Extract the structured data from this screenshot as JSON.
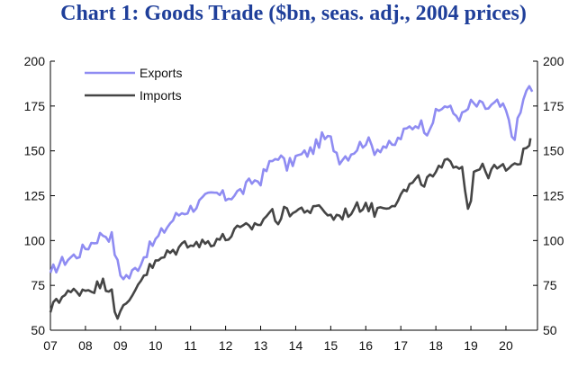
{
  "chart_data": {
    "type": "line",
    "title": "Chart 1: Goods Trade ($bn, seas. adj., 2004 prices)",
    "xlabel": "",
    "ylabel": "",
    "ylim": [
      50,
      200
    ],
    "y_ticks": [
      "50",
      "75",
      "100",
      "125",
      "150",
      "175",
      "200"
    ],
    "y2_ticks": [
      "50",
      "75",
      "100",
      "125",
      "150",
      "175",
      "200"
    ],
    "x_tick_labels": [
      "07",
      "08",
      "09",
      "10",
      "11",
      "12",
      "13",
      "14",
      "15",
      "16",
      "17",
      "18",
      "19",
      "20"
    ],
    "x_range": [
      2007.0,
      2020.9
    ],
    "grid": false,
    "legend_position": "top-left",
    "series": [
      {
        "name": "Exports",
        "color": "#8f8cf2",
        "points": [
          [
            2007.0,
            82
          ],
          [
            2007.25,
            87
          ],
          [
            2007.5,
            90
          ],
          [
            2007.75,
            92
          ],
          [
            2008.0,
            96
          ],
          [
            2008.25,
            100
          ],
          [
            2008.5,
            104
          ],
          [
            2008.75,
            102
          ],
          [
            2008.9,
            88
          ],
          [
            2009.0,
            81
          ],
          [
            2009.25,
            80
          ],
          [
            2009.5,
            86
          ],
          [
            2009.75,
            94
          ],
          [
            2010.0,
            100
          ],
          [
            2010.25,
            106
          ],
          [
            2010.5,
            112
          ],
          [
            2010.75,
            116
          ],
          [
            2011.0,
            118
          ],
          [
            2011.25,
            121
          ],
          [
            2011.5,
            124
          ],
          [
            2011.75,
            126
          ],
          [
            2012.0,
            124
          ],
          [
            2012.25,
            126
          ],
          [
            2012.5,
            128
          ],
          [
            2012.75,
            133
          ],
          [
            2013.0,
            134
          ],
          [
            2013.25,
            142
          ],
          [
            2013.5,
            148
          ],
          [
            2013.75,
            141
          ],
          [
            2014.0,
            146
          ],
          [
            2014.25,
            148
          ],
          [
            2014.5,
            151
          ],
          [
            2014.75,
            157
          ],
          [
            2015.0,
            156
          ],
          [
            2015.25,
            146
          ],
          [
            2015.5,
            148
          ],
          [
            2015.75,
            152
          ],
          [
            2016.0,
            156
          ],
          [
            2016.25,
            151
          ],
          [
            2016.5,
            153
          ],
          [
            2016.75,
            152
          ],
          [
            2017.0,
            158
          ],
          [
            2017.25,
            163
          ],
          [
            2017.5,
            166
          ],
          [
            2017.75,
            162
          ],
          [
            2018.0,
            170
          ],
          [
            2018.25,
            176
          ],
          [
            2018.5,
            171
          ],
          [
            2018.75,
            169
          ],
          [
            2019.0,
            176
          ],
          [
            2019.25,
            175
          ],
          [
            2019.5,
            174
          ],
          [
            2019.75,
            176
          ],
          [
            2020.0,
            172
          ],
          [
            2020.2,
            156
          ],
          [
            2020.4,
            170
          ],
          [
            2020.6,
            186
          ],
          [
            2020.75,
            183
          ]
        ]
      },
      {
        "name": "Imports",
        "color": "#454545",
        "points": [
          [
            2007.0,
            60
          ],
          [
            2007.1,
            68
          ],
          [
            2007.25,
            68
          ],
          [
            2007.5,
            70
          ],
          [
            2007.75,
            72
          ],
          [
            2008.0,
            73
          ],
          [
            2008.25,
            74
          ],
          [
            2008.5,
            76
          ],
          [
            2008.75,
            74
          ],
          [
            2008.85,
            60
          ],
          [
            2009.0,
            59
          ],
          [
            2009.25,
            66
          ],
          [
            2009.5,
            77
          ],
          [
            2009.75,
            83
          ],
          [
            2010.0,
            87
          ],
          [
            2010.25,
            91
          ],
          [
            2010.5,
            94
          ],
          [
            2010.75,
            97
          ],
          [
            2011.0,
            100
          ],
          [
            2011.25,
            98
          ],
          [
            2011.5,
            99
          ],
          [
            2011.75,
            101
          ],
          [
            2012.0,
            101
          ],
          [
            2012.25,
            105
          ],
          [
            2012.5,
            106
          ],
          [
            2012.75,
            108
          ],
          [
            2013.0,
            110
          ],
          [
            2013.25,
            116
          ],
          [
            2013.5,
            112
          ],
          [
            2013.75,
            117
          ],
          [
            2014.0,
            116
          ],
          [
            2014.25,
            118
          ],
          [
            2014.5,
            116
          ],
          [
            2014.75,
            119
          ],
          [
            2015.0,
            113
          ],
          [
            2015.25,
            114
          ],
          [
            2015.5,
            116
          ],
          [
            2015.75,
            118
          ],
          [
            2016.0,
            121
          ],
          [
            2016.25,
            116
          ],
          [
            2016.5,
            120
          ],
          [
            2016.75,
            121
          ],
          [
            2017.0,
            125
          ],
          [
            2017.25,
            130
          ],
          [
            2017.5,
            133
          ],
          [
            2017.75,
            133
          ],
          [
            2018.0,
            137
          ],
          [
            2018.25,
            142
          ],
          [
            2018.5,
            144
          ],
          [
            2018.75,
            142
          ],
          [
            2018.95,
            113
          ],
          [
            2019.1,
            143
          ],
          [
            2019.25,
            140
          ],
          [
            2019.5,
            138
          ],
          [
            2019.75,
            140
          ],
          [
            2020.0,
            140
          ],
          [
            2020.3,
            140
          ],
          [
            2020.5,
            150
          ],
          [
            2020.7,
            157
          ]
        ]
      }
    ]
  }
}
